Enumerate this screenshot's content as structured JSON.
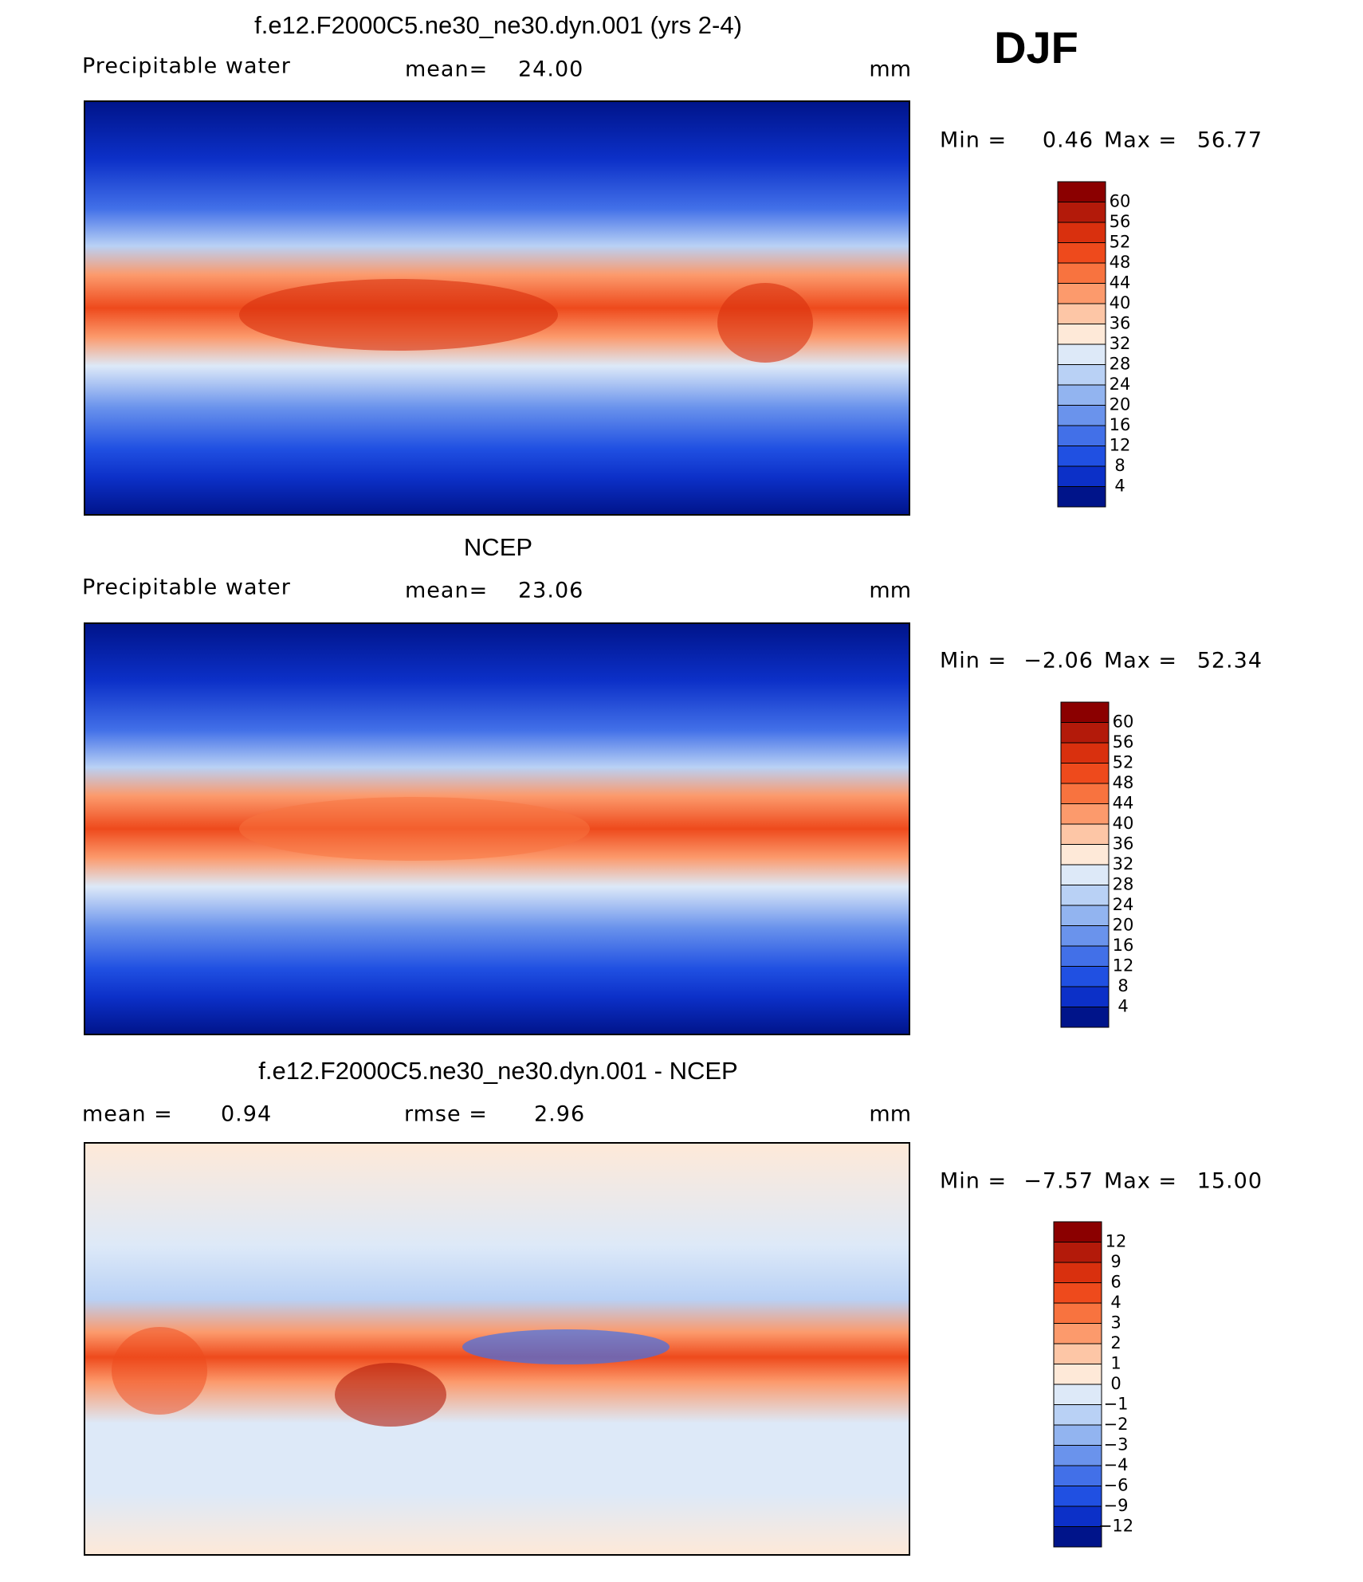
{
  "season": "DJF",
  "panels": [
    {
      "title": "f.e12.F2000C5.ne30_ne30.dyn.001 (yrs 2-4)",
      "variable": "Precipitable water",
      "stats": [
        {
          "label": "mean=",
          "value": "24.00"
        }
      ],
      "units": "mm",
      "min_label": "Min =",
      "min": "0.46",
      "max_label": "Max =",
      "max": "56.77",
      "colorbar": {
        "labels": [
          "60",
          "56",
          "52",
          "48",
          "44",
          "40",
          "36",
          "32",
          "28",
          "24",
          "20",
          "16",
          "12",
          "8",
          "4"
        ],
        "colors": [
          "#8b0000",
          "#b31a0a",
          "#d9300e",
          "#ee4a1c",
          "#f8733f",
          "#fc9a6c",
          "#fdc6a6",
          "#fee9d8",
          "#dde9f8",
          "#b9d1f5",
          "#92b4f0",
          "#6a93ec",
          "#4270e8",
          "#2050e2",
          "#0c30c8",
          "#00148a"
        ]
      }
    },
    {
      "title": "NCEP",
      "variable": "Precipitable water",
      "stats": [
        {
          "label": "mean=",
          "value": "23.06"
        }
      ],
      "units": "mm",
      "min_label": "Min =",
      "min": "−2.06",
      "max_label": "Max =",
      "max": "52.34",
      "colorbar": {
        "labels": [
          "60",
          "56",
          "52",
          "48",
          "44",
          "40",
          "36",
          "32",
          "28",
          "24",
          "20",
          "16",
          "12",
          "8",
          "4"
        ],
        "colors": [
          "#8b0000",
          "#b31a0a",
          "#d9300e",
          "#ee4a1c",
          "#f8733f",
          "#fc9a6c",
          "#fdc6a6",
          "#fee9d8",
          "#dde9f8",
          "#b9d1f5",
          "#92b4f0",
          "#6a93ec",
          "#4270e8",
          "#2050e2",
          "#0c30c8",
          "#00148a"
        ]
      }
    },
    {
      "title": "f.e12.F2000C5.ne30_ne30.dyn.001 - NCEP",
      "stats": [
        {
          "label": "mean =",
          "value": "0.94"
        },
        {
          "label": "rmse =",
          "value": "2.96"
        }
      ],
      "units": "mm",
      "min_label": "Min =",
      "min": "−7.57",
      "max_label": "Max =",
      "max": "15.00",
      "colorbar": {
        "labels": [
          "12",
          "9",
          "6",
          "4",
          "3",
          "2",
          "1",
          "0",
          "−1",
          "−2",
          "−3",
          "−4",
          "−6",
          "−9",
          "−12"
        ],
        "colors": [
          "#8b0000",
          "#b31a0a",
          "#d9300e",
          "#ee4a1c",
          "#f8733f",
          "#fc9a6c",
          "#fdc6a6",
          "#fee9d8",
          "#dde9f8",
          "#b9d1f5",
          "#92b4f0",
          "#6a93ec",
          "#4270e8",
          "#2050e2",
          "#0c30c8",
          "#00148a"
        ]
      }
    }
  ]
}
